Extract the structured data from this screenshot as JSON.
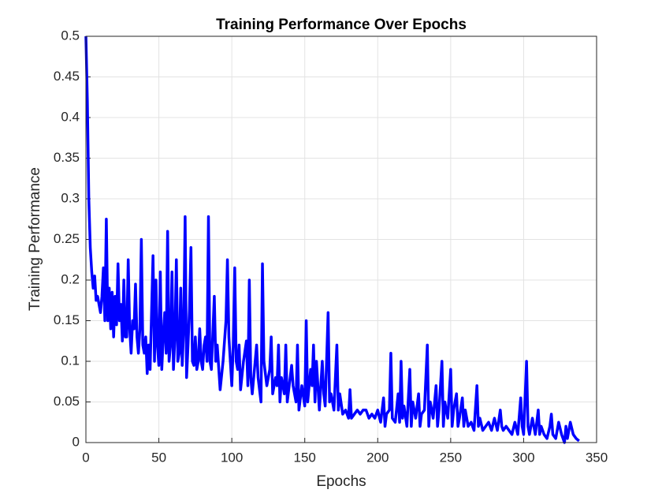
{
  "chart_data": {
    "type": "line",
    "title": "Training Performance Over Epochs",
    "x_label": "Epochs",
    "y_label": "Training Performance",
    "xlim": [
      0,
      350
    ],
    "xticks": [
      0,
      50,
      100,
      150,
      200,
      250,
      300,
      350
    ],
    "ylim": [
      0,
      0.5
    ],
    "yticks": [
      0,
      0.05,
      0.1,
      0.15,
      0.2,
      0.25,
      0.3,
      0.35,
      0.4,
      0.45,
      0.5
    ],
    "grid": true,
    "x": [
      0,
      1,
      2,
      3,
      4,
      5,
      6,
      7,
      8,
      9,
      10,
      11,
      12,
      13,
      14,
      15,
      16,
      17,
      18,
      19,
      20,
      21,
      22,
      23,
      24,
      25,
      26,
      27,
      28,
      29,
      30,
      31,
      32,
      33,
      34,
      35,
      36,
      37,
      38,
      39,
      40,
      41,
      42,
      43,
      44,
      45,
      46,
      47,
      48,
      49,
      50,
      51,
      52,
      53,
      54,
      55,
      56,
      57,
      58,
      59,
      60,
      61,
      62,
      63,
      64,
      65,
      66,
      67,
      68,
      69,
      70,
      71,
      72,
      73,
      74,
      75,
      76,
      77,
      78,
      79,
      80,
      81,
      82,
      83,
      84,
      85,
      86,
      88,
      89,
      90,
      92,
      94,
      96,
      97,
      98,
      100,
      101,
      102,
      103,
      104,
      105,
      106,
      108,
      110,
      111,
      112,
      113,
      114,
      116,
      117,
      118,
      120,
      121,
      122,
      124,
      126,
      127,
      128,
      130,
      131,
      132,
      133,
      134,
      136,
      137,
      138,
      140,
      141,
      142,
      144,
      145,
      146,
      148,
      150,
      151,
      152,
      154,
      155,
      156,
      157,
      158,
      160,
      162,
      163,
      164,
      166,
      167,
      168,
      170,
      172,
      173,
      174,
      176,
      178,
      180,
      181,
      182,
      184,
      186,
      188,
      190,
      192,
      194,
      196,
      198,
      200,
      202,
      204,
      205,
      206,
      208,
      209,
      210,
      212,
      214,
      215,
      216,
      217,
      218,
      220,
      222,
      223,
      224,
      226,
      228,
      229,
      230,
      232,
      234,
      235,
      236,
      238,
      240,
      241,
      242,
      244,
      245,
      246,
      248,
      250,
      251,
      252,
      254,
      255,
      256,
      258,
      259,
      260,
      262,
      264,
      266,
      268,
      269,
      270,
      272,
      274,
      276,
      278,
      280,
      282,
      284,
      285,
      286,
      288,
      290,
      292,
      294,
      296,
      298,
      299,
      300,
      302,
      303,
      304,
      306,
      308,
      310,
      311,
      312,
      314,
      316,
      318,
      319,
      320,
      322,
      324,
      326,
      328,
      329,
      330,
      332,
      334,
      336,
      338
    ],
    "series": [
      {
        "name": "Training Performance",
        "color": "#0000ff",
        "values": [
          0.5,
          0.42,
          0.3,
          0.24,
          0.21,
          0.19,
          0.205,
          0.175,
          0.18,
          0.17,
          0.16,
          0.18,
          0.215,
          0.15,
          0.275,
          0.15,
          0.19,
          0.14,
          0.185,
          0.13,
          0.18,
          0.145,
          0.22,
          0.15,
          0.17,
          0.125,
          0.2,
          0.13,
          0.13,
          0.225,
          0.14,
          0.11,
          0.15,
          0.14,
          0.195,
          0.13,
          0.11,
          0.14,
          0.25,
          0.12,
          0.11,
          0.13,
          0.085,
          0.12,
          0.09,
          0.16,
          0.23,
          0.1,
          0.2,
          0.12,
          0.095,
          0.21,
          0.09,
          0.13,
          0.16,
          0.11,
          0.26,
          0.1,
          0.12,
          0.21,
          0.09,
          0.13,
          0.225,
          0.1,
          0.11,
          0.19,
          0.095,
          0.14,
          0.278,
          0.08,
          0.12,
          0.165,
          0.24,
          0.1,
          0.095,
          0.13,
          0.09,
          0.1,
          0.14,
          0.1,
          0.09,
          0.12,
          0.13,
          0.1,
          0.278,
          0.1,
          0.09,
          0.18,
          0.1,
          0.12,
          0.065,
          0.1,
          0.15,
          0.225,
          0.13,
          0.07,
          0.12,
          0.215,
          0.1,
          0.09,
          0.12,
          0.065,
          0.1,
          0.125,
          0.07,
          0.2,
          0.08,
          0.06,
          0.1,
          0.12,
          0.08,
          0.05,
          0.22,
          0.1,
          0.07,
          0.09,
          0.13,
          0.06,
          0.08,
          0.07,
          0.12,
          0.05,
          0.08,
          0.06,
          0.12,
          0.05,
          0.08,
          0.095,
          0.07,
          0.05,
          0.12,
          0.04,
          0.07,
          0.045,
          0.15,
          0.05,
          0.09,
          0.07,
          0.12,
          0.05,
          0.1,
          0.04,
          0.1,
          0.06,
          0.045,
          0.16,
          0.05,
          0.06,
          0.04,
          0.12,
          0.04,
          0.06,
          0.035,
          0.04,
          0.03,
          0.065,
          0.03,
          0.035,
          0.04,
          0.035,
          0.04,
          0.04,
          0.03,
          0.035,
          0.03,
          0.04,
          0.025,
          0.055,
          0.02,
          0.035,
          0.04,
          0.11,
          0.03,
          0.025,
          0.06,
          0.025,
          0.1,
          0.03,
          0.045,
          0.02,
          0.09,
          0.02,
          0.05,
          0.03,
          0.06,
          0.02,
          0.035,
          0.04,
          0.12,
          0.02,
          0.05,
          0.03,
          0.07,
          0.02,
          0.04,
          0.1,
          0.02,
          0.05,
          0.03,
          0.09,
          0.02,
          0.04,
          0.06,
          0.02,
          0.03,
          0.055,
          0.02,
          0.04,
          0.02,
          0.025,
          0.015,
          0.07,
          0.02,
          0.03,
          0.015,
          0.02,
          0.025,
          0.015,
          0.03,
          0.015,
          0.04,
          0.02,
          0.015,
          0.02,
          0.015,
          0.01,
          0.025,
          0.01,
          0.055,
          0.02,
          0.01,
          0.1,
          0.02,
          0.01,
          0.03,
          0.01,
          0.04,
          0.01,
          0.02,
          0.01,
          0.005,
          0.02,
          0.035,
          0.01,
          0.005,
          0.025,
          0.01,
          0,
          0.02,
          0.005,
          0.025,
          0.01,
          0.005,
          0.002
        ]
      }
    ]
  }
}
